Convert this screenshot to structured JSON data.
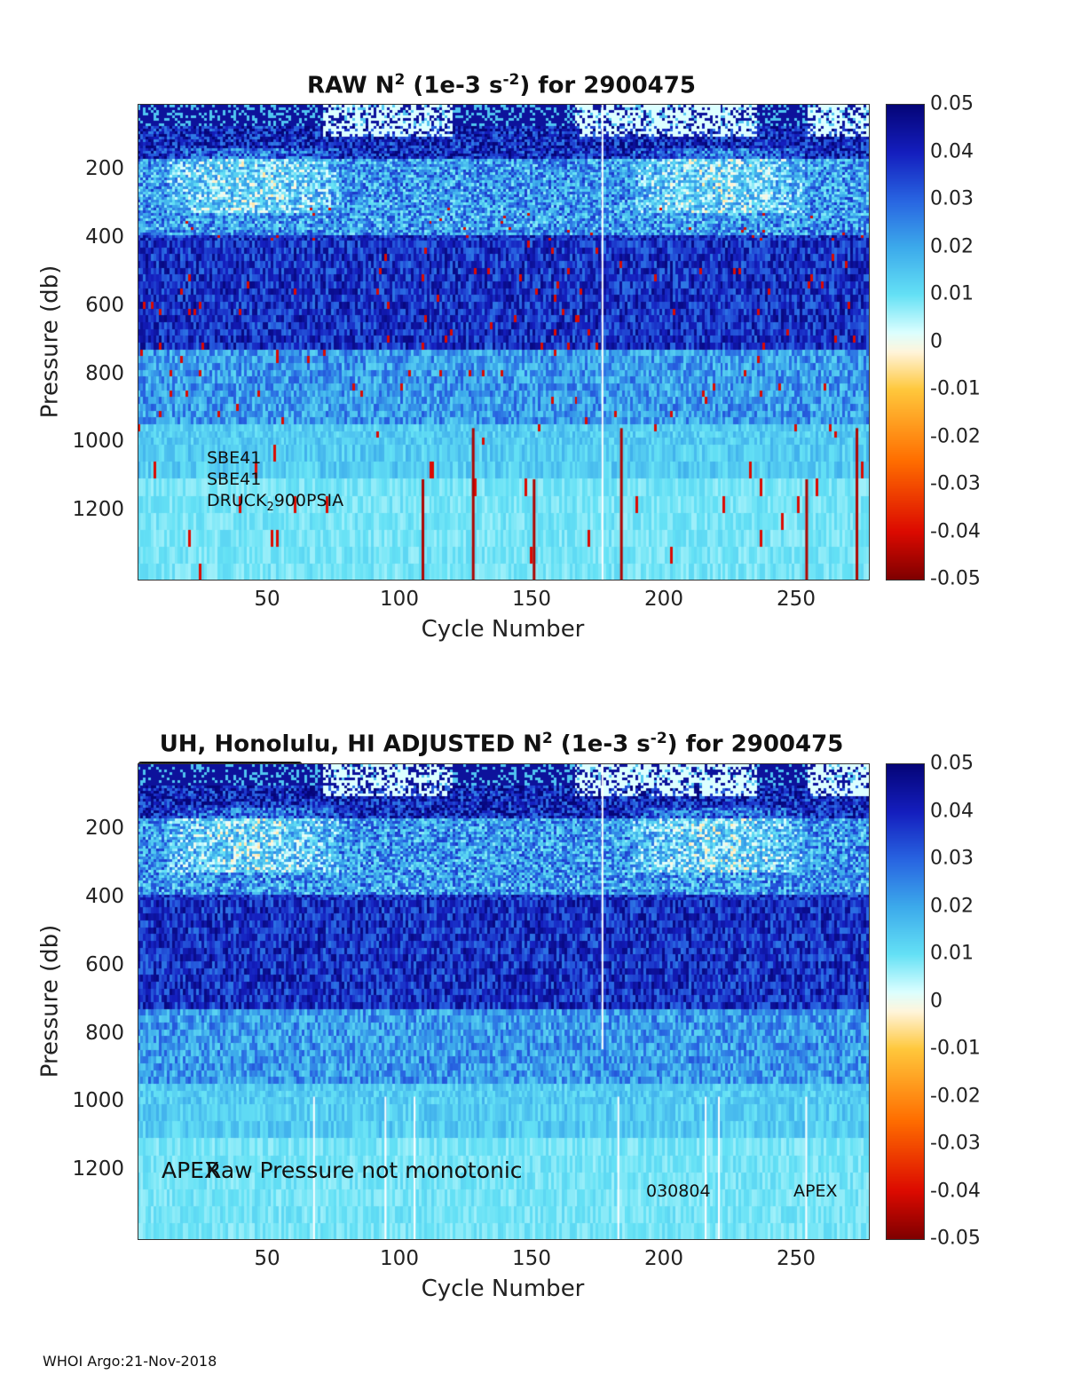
{
  "footer": "WHOI Argo:21-Nov-2018",
  "colorbar": {
    "min": -0.05,
    "max": 0.05,
    "ticks": [
      "0.05",
      "0.04",
      "0.03",
      "0.02",
      "0.01",
      "0",
      "-0.01",
      "-0.02",
      "-0.03",
      "-0.04",
      "-0.05"
    ],
    "colormap": "jet-like with white at zero",
    "neg_color": "#8b0000",
    "pos_color": "#00008b"
  },
  "top": {
    "title_main": "RAW N",
    "title_sup": "2",
    "title_mid": " (1e-3 s",
    "title_sup2": "-2",
    "title_end": ") for 2900475",
    "ylabel": "Pressure (db)",
    "xlabel": "Cycle Number",
    "annotations": {
      "line1": "SBE41",
      "line2": "SBE41",
      "line3a": "DRUCK",
      "line3sub": "2",
      "line3b": "900PSIA"
    }
  },
  "bottom": {
    "title_main": "UH, Honolulu, HI  ADJUSTED N",
    "title_sup": "2",
    "title_mid": " (1e-3 s",
    "title_sup2": "-2",
    "title_end": ") for 2900475",
    "ylabel": "Pressure (db)",
    "xlabel": "Cycle Number",
    "annotations": {
      "apex_left": "APEX",
      "raw_pressure": "Raw Pressure not monotonic",
      "serial": "030804",
      "apex_right": "APEX"
    },
    "marker_row": "oooooooooooooooooooooooooooooooooooooooooooooooooooooooooooooooooooooooooooooooooooooooooooooooooooooooooooooooooooooooooooooooooooooo"
  },
  "chart_data": [
    {
      "type": "heatmap",
      "title": "RAW N2 (1e-3 s-2) for 2900475",
      "xlabel": "Cycle Number",
      "ylabel": "Pressure (db)",
      "x_ticks": [
        50,
        100,
        150,
        200,
        250
      ],
      "y_ticks": [
        200,
        400,
        600,
        800,
        1000,
        1200
      ],
      "xlim": [
        1,
        276
      ],
      "ylim": [
        1395,
        0
      ],
      "y_reversed": true,
      "clim": [
        -0.05,
        0.05
      ],
      "description_values": {
        "upper_0_150db": "mixed, mostly 0.03-0.05 with near-zero patches",
        "150_400db": "0.01-0.03",
        "400_700db": "0.03-0.05",
        "700_1000db": "0.01-0.03",
        "1000_1395db": "0.005-0.015"
      },
      "negative_streak_cycles": [
        108,
        127,
        150,
        183,
        253,
        272
      ]
    },
    {
      "type": "heatmap",
      "title": "UH, Honolulu, HI  ADJUSTED N2 (1e-3 s-2) for 2900475",
      "xlabel": "Cycle Number",
      "ylabel": "Pressure (db)",
      "x_ticks": [
        50,
        100,
        150,
        200,
        250
      ],
      "y_ticks": [
        200,
        400,
        600,
        800,
        1000,
        1200
      ],
      "xlim": [
        1,
        276
      ],
      "ylim": [
        1395,
        0
      ],
      "y_reversed": true,
      "clim": [
        -0.05,
        0.05
      ],
      "missing_cycles": [
        67,
        94,
        105,
        176,
        182,
        215,
        220,
        253
      ]
    }
  ]
}
